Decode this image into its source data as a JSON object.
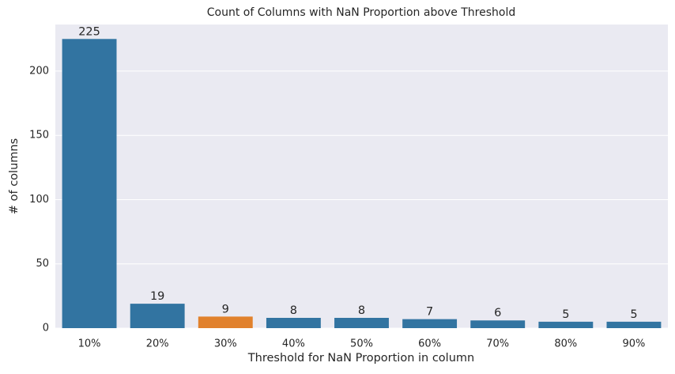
{
  "chart_data": {
    "type": "bar",
    "title": "Count of Columns with NaN Proportion above Threshold",
    "x_label": "Threshold for NaN Proportion in column",
    "y_label": "# of columns",
    "categories": [
      "10%",
      "20%",
      "30%",
      "40%",
      "50%",
      "60%",
      "70%",
      "80%",
      "90%"
    ],
    "values": [
      225,
      19,
      9,
      8,
      8,
      7,
      6,
      5,
      5
    ],
    "colors": [
      "#3274a1",
      "#3274a1",
      "#e1812c",
      "#3274a1",
      "#3274a1",
      "#3274a1",
      "#3274a1",
      "#3274a1",
      "#3274a1"
    ],
    "ylim": [
      0,
      236.25
    ],
    "yticks": [
      0,
      50,
      100,
      150,
      200
    ],
    "grid": true
  }
}
